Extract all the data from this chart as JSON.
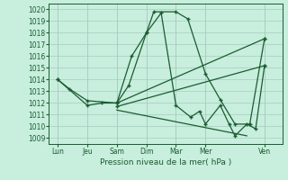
{
  "title": "Pression niveau de la mer( hPa )",
  "bg_color": "#c8eedd",
  "grid_color": "#a8ccc0",
  "line_color": "#1a5c30",
  "ylim_min": 1008.5,
  "ylim_max": 1020.5,
  "yticks": [
    1009,
    1010,
    1011,
    1012,
    1013,
    1014,
    1015,
    1016,
    1017,
    1018,
    1019,
    1020
  ],
  "x_labels": [
    "Lun",
    "Jeu",
    "Sam",
    "Dim",
    "Mar",
    "Mer",
    "Ven"
  ],
  "x_positions": [
    0,
    1,
    2,
    3,
    4,
    5,
    7
  ],
  "xlim_min": -0.3,
  "xlim_max": 7.6,
  "line1_x": [
    0,
    0.4,
    1,
    2,
    2.4,
    3,
    3.25,
    4,
    4.4,
    5,
    5.5,
    6,
    6.5,
    7
  ],
  "line1_y": [
    1014.0,
    1013.2,
    1012.2,
    1012.0,
    1013.5,
    1018.0,
    1019.8,
    1019.8,
    1019.2,
    1014.5,
    1012.3,
    1010.2,
    1010.2,
    1017.5
  ],
  "line2_x": [
    0,
    1,
    1.5,
    2,
    2.5,
    3,
    3.5,
    4,
    4.5,
    4.8,
    5,
    5.5,
    5.8,
    6,
    6.4,
    6.7,
    7
  ],
  "line2_y": [
    1014.0,
    1011.8,
    1012.0,
    1012.0,
    1016.0,
    1018.0,
    1019.7,
    1011.8,
    1010.8,
    1011.3,
    1010.2,
    1011.8,
    1010.2,
    1009.2,
    1010.2,
    1009.8,
    1015.2
  ],
  "line3_x": [
    2,
    7
  ],
  "line3_y": [
    1012.0,
    1017.5
  ],
  "line4_x": [
    2,
    7
  ],
  "line4_y": [
    1011.7,
    1015.2
  ],
  "line5_x": [
    2,
    6.4
  ],
  "line5_y": [
    1011.4,
    1009.2
  ]
}
